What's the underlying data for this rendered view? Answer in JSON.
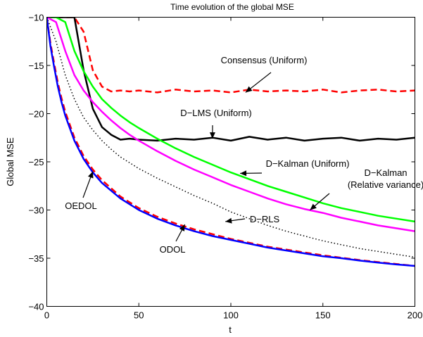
{
  "chart_data": {
    "type": "line",
    "title": "Time evolution of the global MSE",
    "xlabel": "t",
    "ylabel": "Global MSE",
    "xlim": [
      0,
      200
    ],
    "ylim": [
      -40,
      -10
    ],
    "xticks": [
      0,
      50,
      100,
      150,
      200
    ],
    "yticks": [
      -40,
      -35,
      -30,
      -25,
      -20,
      -15,
      -10
    ],
    "xtick_labels": [
      "0",
      "50",
      "100",
      "150",
      "200"
    ],
    "ytick_labels": [
      "−40",
      "−35",
      "−30",
      "−25",
      "−20",
      "−15",
      "−10"
    ],
    "grid": false,
    "legend": "none (curves labeled by annotations)",
    "series": [
      {
        "name": "Consensus (Uniform)",
        "color": "#ff0000",
        "style": "dashed",
        "x": [
          0,
          5,
          10,
          15,
          20,
          25,
          30,
          35,
          40,
          45,
          50,
          60,
          70,
          80,
          90,
          100,
          110,
          120,
          130,
          140,
          150,
          160,
          170,
          180,
          190,
          200
        ],
        "y": [
          -10,
          -10,
          -10,
          -10,
          -11.5,
          -15.5,
          -17.2,
          -17.7,
          -17.6,
          -17.7,
          -17.6,
          -17.8,
          -17.5,
          -17.7,
          -17.6,
          -17.8,
          -17.5,
          -17.7,
          -17.6,
          -17.7,
          -17.5,
          -17.8,
          -17.6,
          -17.5,
          -17.7,
          -17.6
        ]
      },
      {
        "name": "D-LMS (Uniform)",
        "color": "#000000",
        "style": "solid",
        "x": [
          0,
          5,
          10,
          15,
          20,
          25,
          30,
          35,
          40,
          45,
          50,
          60,
          70,
          80,
          90,
          100,
          110,
          120,
          130,
          140,
          150,
          160,
          170,
          180,
          190,
          200
        ],
        "y": [
          -10,
          -10,
          -10,
          -10,
          -15.5,
          -19.5,
          -21.4,
          -22.2,
          -22.7,
          -22.6,
          -22.7,
          -22.8,
          -22.6,
          -22.7,
          -22.5,
          -22.8,
          -22.4,
          -22.7,
          -22.5,
          -22.8,
          -22.6,
          -22.5,
          -22.8,
          -22.6,
          -22.7,
          -22.5
        ]
      },
      {
        "name": "D-Kalman (Uniform)",
        "color": "#00ff00",
        "style": "solid",
        "x": [
          0,
          5,
          10,
          15,
          20,
          25,
          30,
          35,
          40,
          45,
          50,
          60,
          70,
          80,
          90,
          100,
          110,
          120,
          130,
          140,
          150,
          160,
          170,
          180,
          190,
          200
        ],
        "y": [
          -10,
          -10,
          -10.5,
          -13.5,
          -15.6,
          -17.2,
          -18.5,
          -19.4,
          -20.2,
          -20.9,
          -21.5,
          -22.6,
          -23.6,
          -24.5,
          -25.3,
          -26.1,
          -26.8,
          -27.5,
          -28.1,
          -28.7,
          -29.3,
          -29.8,
          -30.2,
          -30.6,
          -30.9,
          -31.2
        ]
      },
      {
        "name": "D-Kalman (Relative variance)",
        "color": "#ff00ff",
        "style": "solid",
        "x": [
          0,
          5,
          10,
          15,
          20,
          25,
          30,
          35,
          40,
          45,
          50,
          60,
          70,
          80,
          90,
          100,
          110,
          120,
          130,
          140,
          150,
          160,
          170,
          180,
          190,
          200
        ],
        "y": [
          -10,
          -10.5,
          -13.5,
          -16,
          -17.6,
          -18.8,
          -19.8,
          -20.7,
          -21.5,
          -22.2,
          -22.8,
          -23.9,
          -24.9,
          -25.8,
          -26.6,
          -27.4,
          -28.1,
          -28.8,
          -29.4,
          -29.9,
          -30.3,
          -30.8,
          -31.2,
          -31.6,
          -31.9,
          -32.2
        ]
      },
      {
        "name": "D-RLS",
        "color": "#000000",
        "style": "dotted",
        "x": [
          0,
          5,
          10,
          15,
          20,
          25,
          30,
          35,
          40,
          45,
          50,
          60,
          70,
          80,
          90,
          100,
          110,
          120,
          130,
          140,
          150,
          160,
          170,
          180,
          190,
          200
        ],
        "y": [
          -10,
          -12.5,
          -16,
          -18.5,
          -20.4,
          -21.7,
          -22.8,
          -23.7,
          -24.5,
          -25.1,
          -25.7,
          -26.7,
          -27.6,
          -28.5,
          -29.3,
          -30.2,
          -30.9,
          -31.6,
          -32.2,
          -32.7,
          -33.2,
          -33.6,
          -34,
          -34.3,
          -34.6,
          -34.9
        ]
      },
      {
        "name": "OEDOL",
        "color": "#ff0000",
        "style": "dashed",
        "x": [
          0,
          2,
          4,
          6,
          8,
          10,
          15,
          20,
          25,
          30,
          40,
          50,
          60,
          70,
          80,
          90,
          100,
          110,
          120,
          130,
          140,
          150,
          160,
          170,
          180,
          190,
          200
        ],
        "y": [
          -10,
          -12.7,
          -14.8,
          -16.8,
          -18.4,
          -19.8,
          -22.5,
          -24.4,
          -25.8,
          -26.9,
          -28.6,
          -29.8,
          -30.7,
          -31.4,
          -32.0,
          -32.5,
          -33.0,
          -33.4,
          -33.8,
          -34.1,
          -34.4,
          -34.7,
          -34.95,
          -35.2,
          -35.4,
          -35.6,
          -35.8
        ]
      },
      {
        "name": "ODOL",
        "color": "#0000ff",
        "style": "solid",
        "x": [
          0,
          2,
          4,
          6,
          8,
          10,
          15,
          20,
          25,
          30,
          40,
          50,
          60,
          70,
          80,
          90,
          100,
          110,
          120,
          130,
          140,
          150,
          160,
          170,
          180,
          190,
          200
        ],
        "y": [
          -10,
          -13,
          -15.2,
          -17.2,
          -18.8,
          -20.2,
          -22.8,
          -24.7,
          -26.1,
          -27.2,
          -28.8,
          -30.0,
          -30.9,
          -31.6,
          -32.2,
          -32.7,
          -33.1,
          -33.5,
          -33.9,
          -34.2,
          -34.5,
          -34.8,
          -35.0,
          -35.25,
          -35.45,
          -35.65,
          -35.8
        ]
      }
    ],
    "annotations": [
      {
        "text": "Consensus (Uniform)",
        "x": 108,
        "y": -17.8
      },
      {
        "text": "D−LMS (Uniform)",
        "x": 90,
        "y": -22.6
      },
      {
        "text": "D−Kalman (Uniform)",
        "x": 105,
        "y": -26.2
      },
      {
        "text": "D−Kalman",
        "x": 143,
        "y": -30.0
      },
      {
        "text": "(Relative variance)",
        "x": 143,
        "y": -30.0
      },
      {
        "text": "D−RLS",
        "x": 97,
        "y": -31.2
      },
      {
        "text": "OEDOL",
        "x": 25,
        "y": -26.0
      },
      {
        "text": "ODOL",
        "x": 75,
        "y": -31.5
      }
    ]
  }
}
